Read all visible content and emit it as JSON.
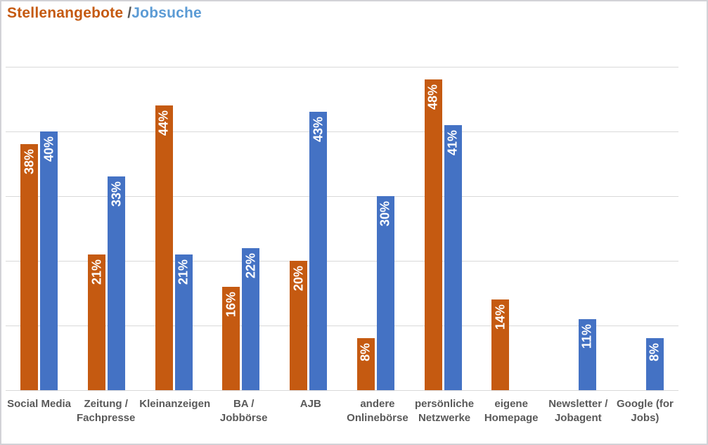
{
  "chart_data": {
    "type": "bar",
    "title": {
      "full_text": "Stellenangebote /Jobsuche",
      "parts": [
        {
          "text": "Stellenangebote ",
          "color": "#C55A11"
        },
        {
          "text": "/",
          "color": "#595959"
        },
        {
          "text": "Jobsuche",
          "color": "#5B9BD5"
        }
      ]
    },
    "categories": [
      "Social Media",
      "Zeitung / Fachpresse",
      "Kleinanzeigen",
      "BA / Jobbörse",
      "AJB",
      "andere Onlinebörse",
      "persönliche Netzwerke",
      "eigene Homepage",
      "Newsletter / Jobagent",
      "Google (for Jobs)"
    ],
    "category_label_lines": [
      [
        "Social Media"
      ],
      [
        "Zeitung /",
        "Fachpresse"
      ],
      [
        "Kleinanzeigen"
      ],
      [
        "BA /",
        "Jobbörse"
      ],
      [
        "AJB"
      ],
      [
        "andere",
        "Onlinebörse"
      ],
      [
        "persönliche",
        "Netzwerke"
      ],
      [
        "eigene",
        "Homepage"
      ],
      [
        "Newsletter /",
        "Jobagent"
      ],
      [
        "Google (for",
        "Jobs)"
      ]
    ],
    "series": [
      {
        "name": "Stellenangebote",
        "color": "#C55A11",
        "values": [
          38,
          21,
          44,
          16,
          20,
          8,
          48,
          14,
          null,
          null
        ]
      },
      {
        "name": "Jobsuche",
        "color": "#4472C4",
        "values": [
          40,
          33,
          21,
          22,
          43,
          30,
          41,
          null,
          11,
          8
        ]
      }
    ],
    "data_label_suffix": "%",
    "data_label_color": "#FFFFFF",
    "ylim": [
      0,
      50
    ],
    "gridline_interval": 10,
    "gridline_color": "#D9D9D9",
    "grid": "horizontal",
    "y_axis_labels": "none",
    "legend_position": "none"
  }
}
